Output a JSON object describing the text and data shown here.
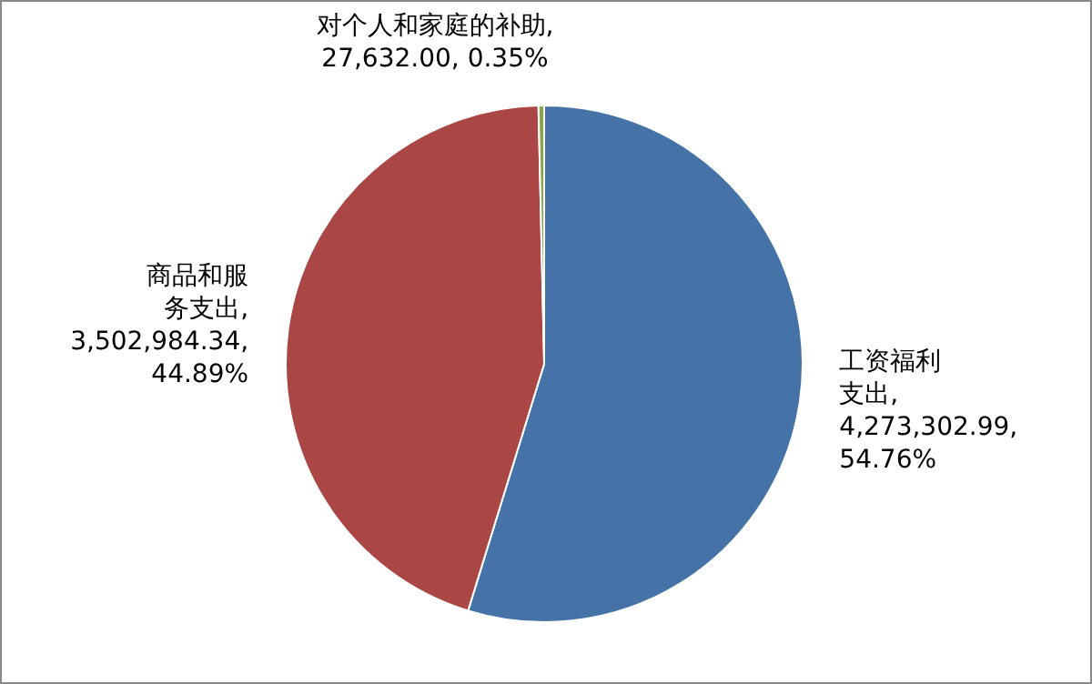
{
  "chart_data": {
    "type": "pie",
    "categories": [
      "工资福利支出",
      "商品和服务支出",
      "对个人和家庭的补助"
    ],
    "values": [
      4273302.99,
      3502984.34,
      27632.0
    ],
    "colors": [
      "#4572a7",
      "#aa4643",
      "#89a54e"
    ],
    "value_labels": [
      ", 4,273,302.99, 54.76%",
      ", 3,502,984.34, 44.89%",
      ", 27,632.00, 0.35%"
    ],
    "legend": false
  }
}
